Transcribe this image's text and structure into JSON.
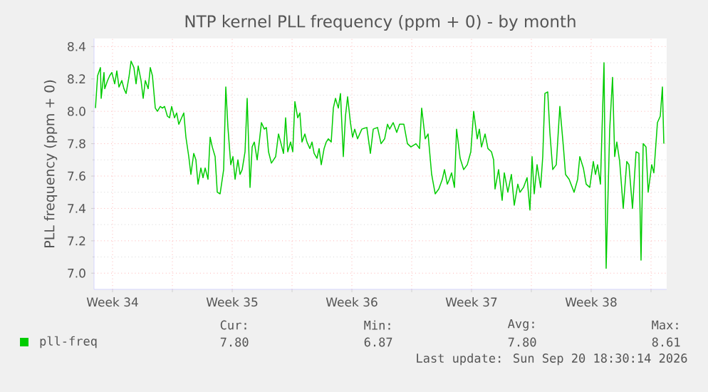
{
  "chart_data": {
    "type": "line",
    "title": "NTP kernel PLL frequency (ppm + 0) - by month",
    "ylabel": "PLL frequency (ppm + 0)",
    "xlim": [
      "2026-08-18T10:00",
      "2026-09-20T22:00"
    ],
    "ylim": [
      6.9,
      8.45
    ],
    "xticks": [
      {
        "value": "2026-08-19T12:00",
        "label": "Week 34"
      },
      {
        "value": "2026-08-23T00:00",
        "label": null
      },
      {
        "value": "2026-08-26T12:00",
        "label": "Week 35"
      },
      {
        "value": "2026-08-30T00:00",
        "label": null
      },
      {
        "value": "2026-09-02T12:00",
        "label": "Week 36"
      },
      {
        "value": "2026-09-06T00:00",
        "label": null
      },
      {
        "value": "2026-09-09T12:00",
        "label": "Week 37"
      },
      {
        "value": "2026-09-13T00:00",
        "label": null
      },
      {
        "value": "2026-09-16T12:00",
        "label": "Week 38"
      },
      {
        "value": "2026-09-20T00:00",
        "label": null
      }
    ],
    "yticks": [
      {
        "value": 7,
        "label": "7.0"
      },
      7.2,
      7.4,
      7.6,
      7.8,
      {
        "value": 8,
        "label": "8.0"
      },
      8.2,
      8.4
    ],
    "grid": true,
    "legend": "bottom",
    "x": [
      "2026-08-18T12:00",
      "2026-08-18T15:00",
      "2026-08-18T19:00",
      "2026-08-18T20:00",
      "2026-08-19T00:00",
      "2026-08-19T01:00",
      "2026-08-19T05:00",
      "2026-08-19T08:00",
      "2026-08-19T11:00",
      "2026-08-19T15:00",
      "2026-08-19T18:00",
      "2026-08-19T21:00",
      "2026-08-20T01:00",
      "2026-08-20T04:00",
      "2026-08-20T07:00",
      "2026-08-20T11:00",
      "2026-08-20T14:00",
      "2026-08-20T18:00",
      "2026-08-20T21:00",
      "2026-08-21T00:00",
      "2026-08-21T04:00",
      "2026-08-21T07:00",
      "2026-08-21T10:00",
      "2026-08-21T14:00",
      "2026-08-21T17:00",
      "2026-08-21T20:00",
      "2026-08-22T00:00",
      "2026-08-22T03:00",
      "2026-08-22T07:00",
      "2026-08-22T10:00",
      "2026-08-22T13:00",
      "2026-08-22T17:00",
      "2026-08-22T20:00",
      "2026-08-22T23:00",
      "2026-08-23T03:00",
      "2026-08-23T06:00",
      "2026-08-23T09:00",
      "2026-08-23T13:00",
      "2026-08-23T16:00",
      "2026-08-23T19:00",
      "2026-08-23T23:00",
      "2026-08-24T02:00",
      "2026-08-24T06:00",
      "2026-08-24T09:00",
      "2026-08-24T12:00",
      "2026-08-24T16:00",
      "2026-08-24T19:00",
      "2026-08-24T22:00",
      "2026-08-25T02:00",
      "2026-08-25T05:00",
      "2026-08-25T08:00",
      "2026-08-25T12:00",
      "2026-08-25T15:00",
      "2026-08-25T19:00",
      "2026-08-25T20:00",
      "2026-08-26T00:00",
      "2026-08-26T03:00",
      "2026-08-26T06:00",
      "2026-08-26T10:00",
      "2026-08-26T13:00",
      "2026-08-26T16:00",
      "2026-08-26T20:00",
      "2026-08-26T23:00",
      "2026-08-27T02:00",
      "2026-08-27T06:00",
      "2026-08-27T09:00",
      "2026-08-27T13:00",
      "2026-08-27T16:00",
      "2026-08-27T19:00",
      "2026-08-27T23:00",
      "2026-08-28T02:00",
      "2026-08-28T05:00",
      "2026-08-28T09:00",
      "2026-08-28T12:00",
      "2026-08-28T15:00",
      "2026-08-28T19:00",
      "2026-08-28T22:00",
      "2026-08-29T01:00",
      "2026-08-29T05:00",
      "2026-08-29T08:00",
      "2026-08-29T12:00",
      "2026-08-29T15:00",
      "2026-08-29T18:00",
      "2026-08-29T22:00",
      "2026-08-30T01:00",
      "2026-08-30T04:00",
      "2026-08-30T08:00",
      "2026-08-30T11:00",
      "2026-08-30T14:00",
      "2026-08-30T18:00",
      "2026-08-30T21:00",
      "2026-08-31T01:00",
      "2026-08-31T04:00",
      "2026-08-31T07:00",
      "2026-08-31T11:00",
      "2026-08-31T14:00",
      "2026-08-31T17:00",
      "2026-08-31T21:00",
      "2026-09-01T00:00",
      "2026-09-01T03:00",
      "2026-09-01T07:00",
      "2026-09-01T10:00",
      "2026-09-01T13:00",
      "2026-09-01T17:00",
      "2026-09-01T20:00",
      "2026-09-02T00:00",
      "2026-09-02T03:00",
      "2026-09-02T06:00",
      "2026-09-02T10:00",
      "2026-09-02T13:00",
      "2026-09-02T16:00",
      "2026-09-02T20:00",
      "2026-09-03T02:00",
      "2026-09-03T09:00",
      "2026-09-03T14:00",
      "2026-09-03T18:00",
      "2026-09-04T00:00",
      "2026-09-04T05:00",
      "2026-09-04T10:00",
      "2026-09-04T14:00",
      "2026-09-04T17:00",
      "2026-09-04T22:00",
      "2026-09-05T03:00",
      "2026-09-05T07:00",
      "2026-09-05T13:00",
      "2026-09-05T18:00",
      "2026-09-05T23:00",
      "2026-09-06T06:00",
      "2026-09-06T11:00",
      "2026-09-06T14:00",
      "2026-09-06T19:00",
      "2026-09-06T23:00",
      "2026-09-07T04:00",
      "2026-09-07T09:00",
      "2026-09-07T14:00",
      "2026-09-07T19:00",
      "2026-09-07T22:00",
      "2026-09-08T02:00",
      "2026-09-08T05:00",
      "2026-09-08T08:00",
      "2026-09-08T12:00",
      "2026-09-08T15:00",
      "2026-09-08T20:00",
      "2026-09-09T01:00",
      "2026-09-09T06:00",
      "2026-09-09T11:00",
      "2026-09-09T15:00",
      "2026-09-09T20:00",
      "2026-09-09T23:00",
      "2026-09-10T02:00",
      "2026-09-10T07:00",
      "2026-09-10T11:00",
      "2026-09-10T16:00",
      "2026-09-10T19:00",
      "2026-09-10T21:00",
      "2026-09-11T02:00",
      "2026-09-11T07:00",
      "2026-09-11T10:00",
      "2026-09-11T15:00",
      "2026-09-11T20:00",
      "2026-09-12T00:00",
      "2026-09-12T05:00",
      "2026-09-12T08:00",
      "2026-09-12T13:00",
      "2026-09-12T18:00",
      "2026-09-12T22:00",
      "2026-09-13T01:00",
      "2026-09-13T04:00",
      "2026-09-13T08:00",
      "2026-09-13T13:00",
      "2026-09-13T16:00",
      "2026-09-13T19:00",
      "2026-09-13T23:00",
      "2026-09-14T02:00",
      "2026-09-14T06:00",
      "2026-09-14T11:00",
      "2026-09-14T16:00",
      "2026-09-14T21:00",
      "2026-09-15T00:00",
      "2026-09-15T05:00",
      "2026-09-15T12:00",
      "2026-09-15T17:00",
      "2026-09-15T20:00",
      "2026-09-16T01:00",
      "2026-09-16T05:00",
      "2026-09-16T10:00",
      "2026-09-16T15:00",
      "2026-09-16T18:00",
      "2026-09-16T21:00",
      "2026-09-17T01:00",
      "2026-09-17T06:00",
      "2026-09-17T09:00",
      "2026-09-17T14:00",
      "2026-09-17T18:00",
      "2026-09-17T21:00",
      "2026-09-18T00:00",
      "2026-09-18T04:00",
      "2026-09-18T09:00",
      "2026-09-18T14:00",
      "2026-09-18T17:00",
      "2026-09-18T22:00",
      "2026-09-19T03:00",
      "2026-09-19T07:00",
      "2026-09-19T10:00",
      "2026-09-19T13:00",
      "2026-09-19T17:00",
      "2026-09-19T20:00",
      "2026-09-20T01:00",
      "2026-09-20T04:00",
      "2026-09-20T09:00",
      "2026-09-20T13:00",
      "2026-09-20T16:00",
      "2026-09-20T18:00"
    ],
    "series": [
      {
        "name": "pll-freq",
        "color": "#00cc00",
        "values": [
          8.02,
          8.22,
          8.27,
          8.08,
          8.24,
          8.14,
          8.19,
          8.22,
          8.24,
          8.17,
          8.25,
          8.15,
          8.19,
          8.14,
          8.11,
          8.21,
          8.31,
          8.27,
          8.17,
          8.28,
          8.19,
          8.08,
          8.19,
          8.14,
          8.27,
          8.22,
          8.02,
          8.0,
          8.03,
          8.02,
          8.03,
          7.97,
          7.96,
          8.03,
          7.96,
          7.99,
          7.92,
          7.96,
          7.99,
          7.84,
          7.72,
          7.61,
          7.74,
          7.7,
          7.55,
          7.65,
          7.59,
          7.65,
          7.58,
          7.84,
          7.78,
          7.72,
          7.5,
          7.49,
          7.52,
          7.64,
          8.15,
          7.9,
          7.67,
          7.72,
          7.58,
          7.7,
          7.61,
          7.64,
          7.75,
          8.08,
          7.53,
          7.78,
          7.81,
          7.7,
          7.81,
          7.93,
          7.89,
          7.9,
          7.75,
          7.68,
          7.7,
          7.72,
          7.86,
          7.81,
          7.74,
          7.96,
          7.75,
          7.81,
          7.75,
          8.06,
          7.96,
          7.99,
          7.81,
          7.86,
          7.81,
          7.77,
          7.81,
          7.74,
          7.71,
          7.77,
          7.67,
          7.77,
          7.81,
          7.83,
          7.81,
          8.02,
          8.08,
          8.02,
          8.11,
          7.72,
          7.97,
          8.09,
          7.93,
          7.84,
          7.89,
          7.83,
          7.89,
          7.9,
          7.74,
          7.89,
          7.9,
          7.8,
          7.83,
          7.92,
          7.89,
          7.93,
          7.87,
          7.92,
          7.92,
          7.8,
          7.78,
          7.8,
          7.77,
          8.02,
          7.83,
          7.86,
          7.61,
          7.49,
          7.52,
          7.58,
          7.64,
          7.55,
          7.58,
          7.62,
          7.53,
          7.89,
          7.71,
          7.64,
          7.67,
          7.75,
          8.0,
          7.83,
          7.89,
          7.78,
          7.86,
          7.77,
          7.75,
          7.7,
          7.52,
          7.64,
          7.45,
          7.62,
          7.5,
          7.61,
          7.42,
          7.55,
          7.5,
          7.53,
          7.59,
          7.39,
          7.72,
          7.49,
          7.67,
          7.53,
          7.72,
          8.11,
          8.12,
          7.87,
          7.64,
          7.67,
          8.03,
          7.78,
          7.61,
          7.58,
          7.5,
          7.58,
          7.72,
          7.65,
          7.55,
          7.53,
          7.69,
          7.61,
          7.67,
          7.55,
          8.3,
          7.03,
          7.89,
          8.21,
          7.72,
          7.81,
          7.69,
          7.4,
          7.69,
          7.67,
          7.4,
          7.75,
          7.74,
          7.08,
          7.8,
          7.78,
          7.5,
          7.67,
          7.62,
          7.93,
          7.97,
          8.15,
          7.8
        ]
      }
    ],
    "annotations": [
      "Cur:",
      "Min:",
      "Avg:",
      "Max:",
      "7.80",
      "6.87",
      "7.80",
      "8.61",
      "Last update: Sun Sep 20 18:30:14 2026"
    ]
  }
}
